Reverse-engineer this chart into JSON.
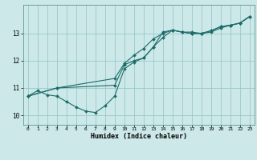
{
  "xlabel": "Humidex (Indice chaleur)",
  "bg_color": "#cce8e8",
  "line_color": "#1e6b6b",
  "xlim": [
    -0.5,
    23.5
  ],
  "ylim": [
    9.65,
    14.05
  ],
  "yticks": [
    10,
    11,
    12,
    13
  ],
  "xticks": [
    0,
    1,
    2,
    3,
    4,
    5,
    6,
    7,
    8,
    9,
    10,
    11,
    12,
    13,
    14,
    15,
    16,
    17,
    18,
    19,
    20,
    21,
    22,
    23
  ],
  "series": [
    {
      "x": [
        0,
        1,
        2,
        3,
        4,
        5,
        6,
        7,
        8,
        9,
        10,
        11,
        12,
        13,
        14,
        15,
        16,
        17,
        18,
        19,
        20,
        21,
        22,
        23
      ],
      "y": [
        10.7,
        10.9,
        10.75,
        10.7,
        10.5,
        10.3,
        10.15,
        10.1,
        10.35,
        10.7,
        11.7,
        11.95,
        12.1,
        12.5,
        13.05,
        13.12,
        13.05,
        13.0,
        13.0,
        13.1,
        13.25,
        13.3,
        13.38,
        13.62
      ]
    },
    {
      "x": [
        0,
        3,
        9,
        10,
        11,
        12,
        13,
        14,
        15,
        16,
        17,
        18,
        19,
        20,
        21,
        22,
        23
      ],
      "y": [
        10.7,
        11.0,
        11.1,
        11.85,
        12.0,
        12.1,
        12.5,
        12.85,
        13.12,
        13.05,
        13.05,
        13.0,
        13.1,
        13.25,
        13.3,
        13.38,
        13.62
      ]
    },
    {
      "x": [
        0,
        3,
        9,
        10,
        11,
        12,
        13,
        14,
        15,
        16,
        17,
        18,
        19,
        20,
        21,
        22,
        23
      ],
      "y": [
        10.7,
        11.0,
        11.35,
        11.9,
        12.2,
        12.45,
        12.8,
        13.0,
        13.12,
        13.05,
        13.0,
        13.0,
        13.05,
        13.2,
        13.3,
        13.38,
        13.62
      ]
    }
  ]
}
